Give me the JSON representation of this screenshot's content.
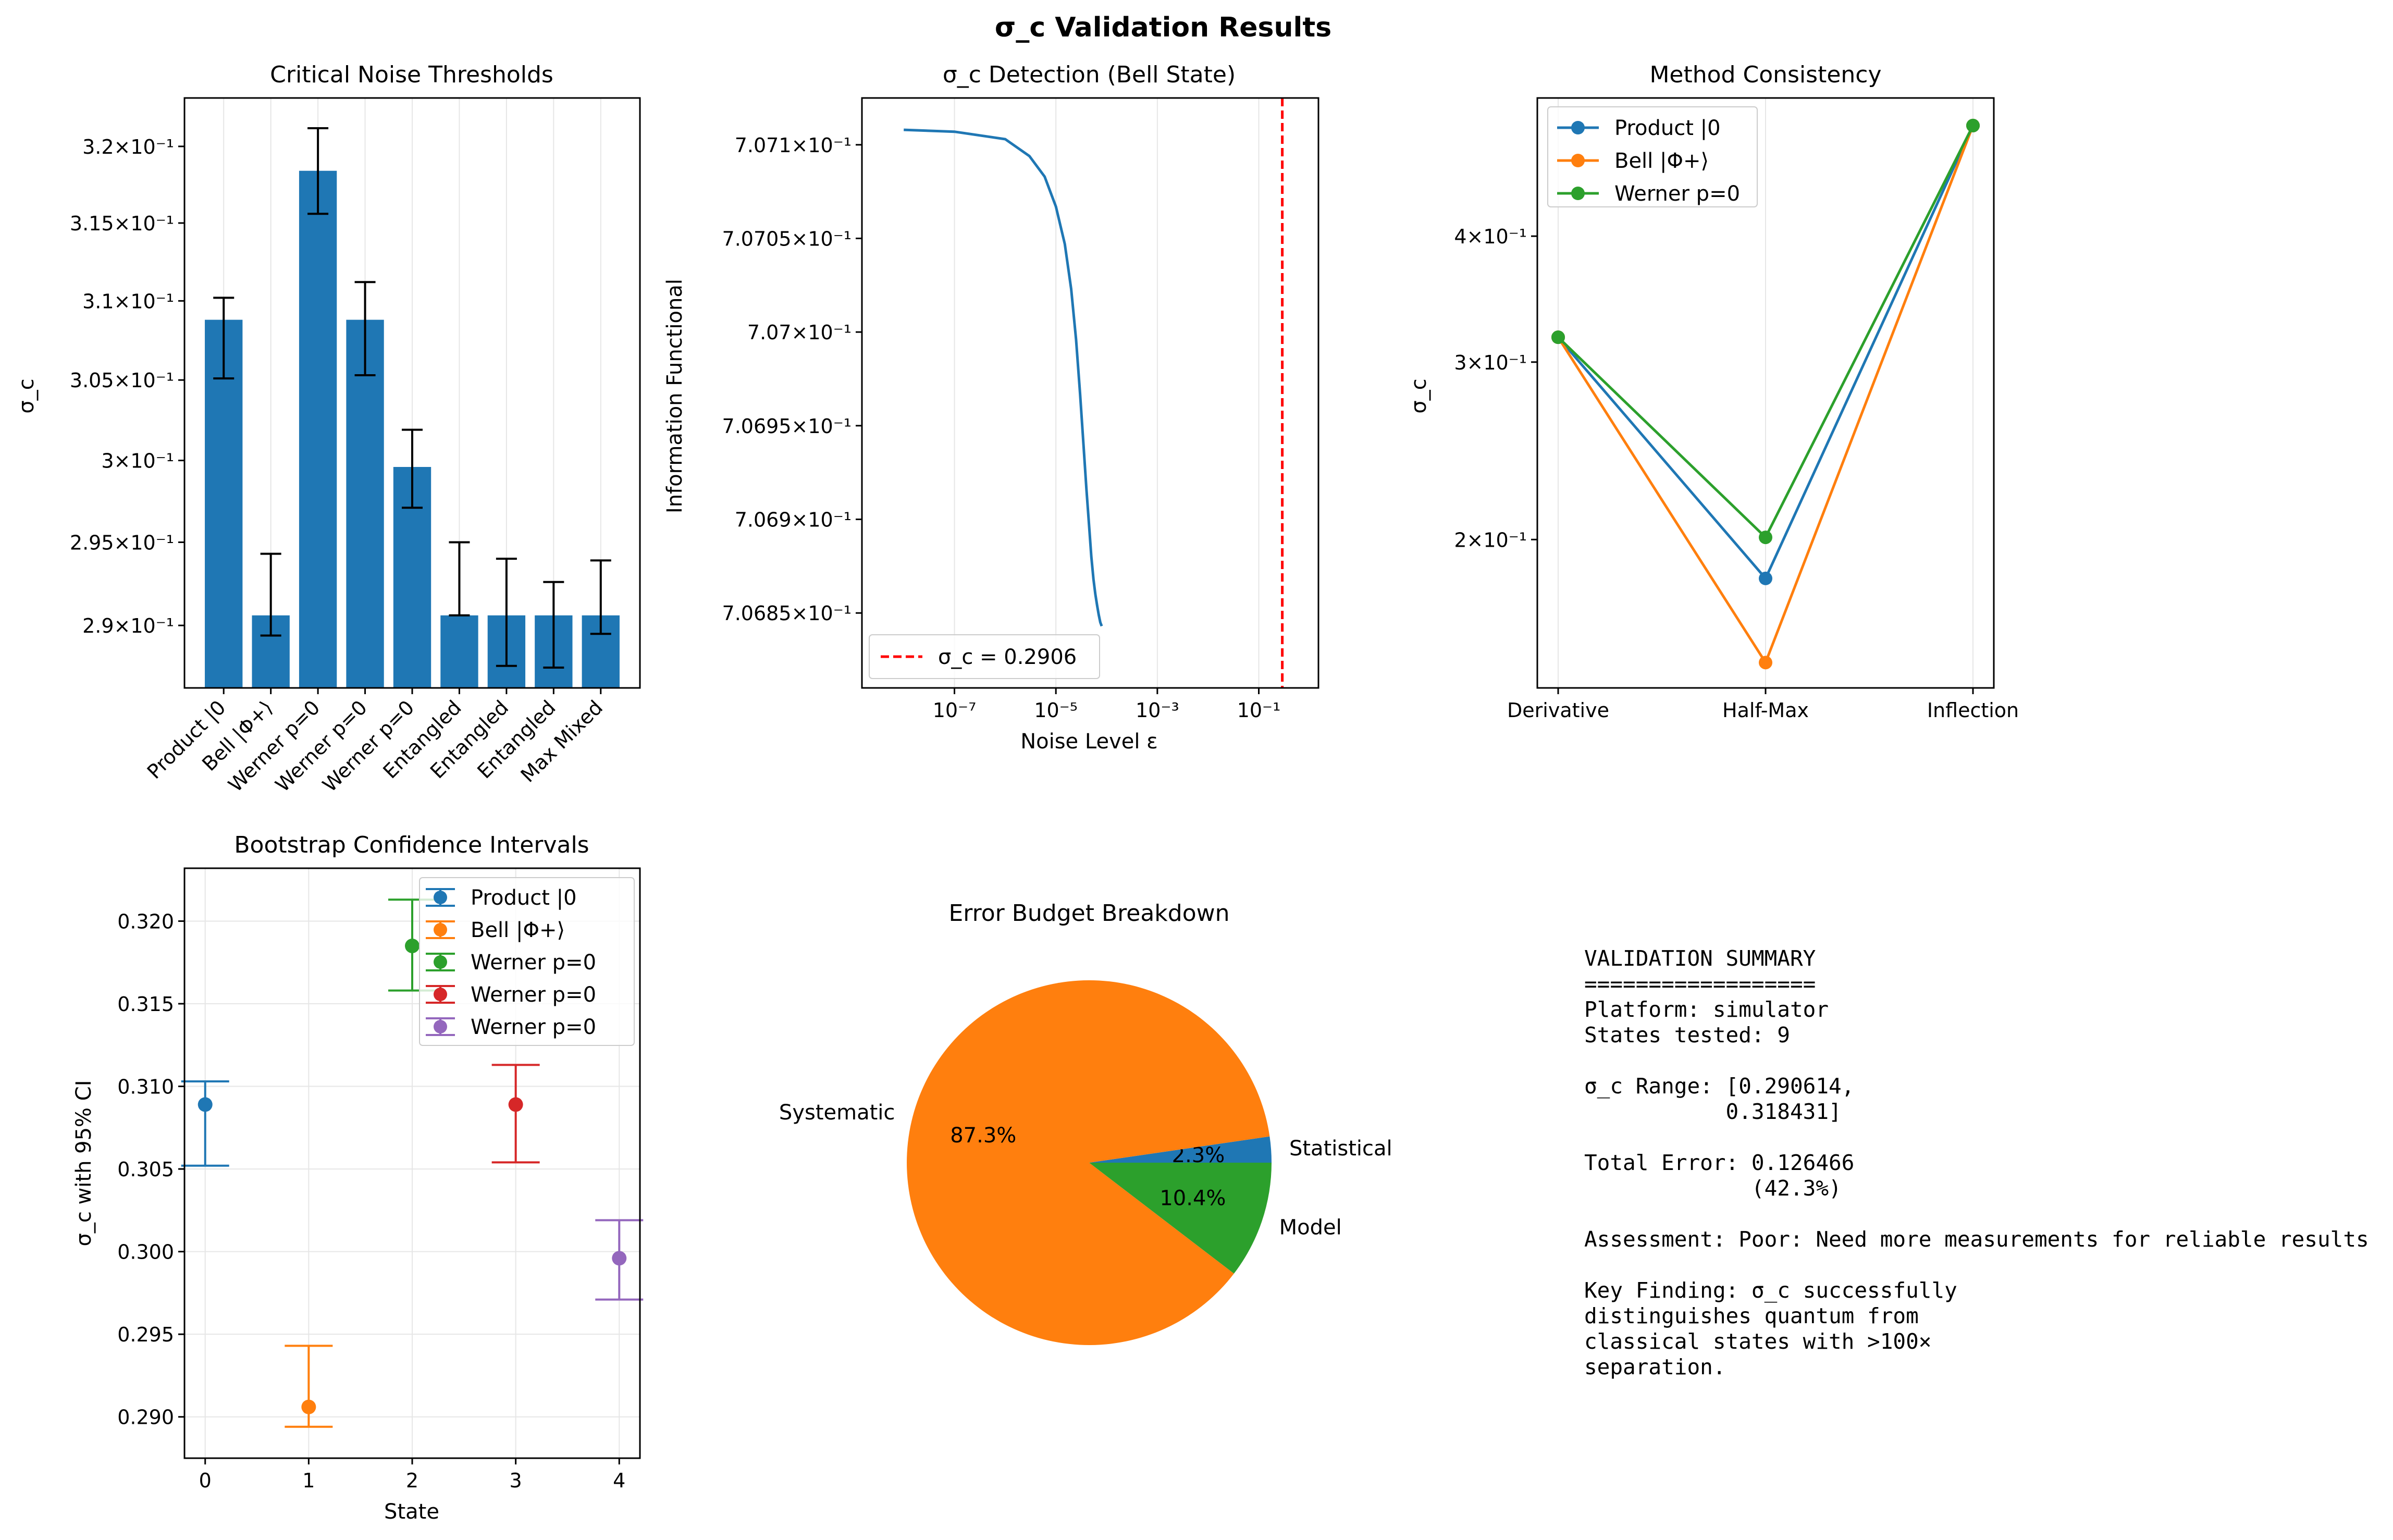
{
  "figure": {
    "suptitle": "σ_c Validation Results"
  },
  "colors": {
    "bar": "#1f77b4",
    "series": [
      "#1f77b4",
      "#ff7f0e",
      "#2ca02c",
      "#d62728",
      "#9467bd"
    ],
    "threshold_line": "#ff0000"
  },
  "chart_data": [
    {
      "id": "thresholds",
      "type": "bar",
      "title": "Critical Noise Thresholds",
      "xlabel": "",
      "ylabel": "σ_c",
      "yscale": "log",
      "ylim": [
        0.2863,
        0.3232
      ],
      "yticks": [
        0.29,
        0.295,
        0.3,
        0.305,
        0.31,
        0.315,
        0.32
      ],
      "ytick_labels": [
        "2.9×10⁻¹",
        "2.95×10⁻¹",
        "3×10⁻¹",
        "3.05×10⁻¹",
        "3.1×10⁻¹",
        "3.15×10⁻¹",
        "3.2×10⁻¹"
      ],
      "categories": [
        "Product |0",
        "Bell |Φ+⟩",
        "Werner p=0",
        "Werner p=0",
        "Werner p=0",
        "Entangled",
        "Entangled",
        "Entangled",
        "Max Mixed"
      ],
      "values": [
        0.3088,
        0.2906,
        0.3184,
        0.3088,
        0.2996,
        0.2906,
        0.2906,
        0.2906,
        0.2906
      ],
      "err_low": [
        0.3051,
        0.2894,
        0.3156,
        0.3053,
        0.2971,
        0.2906,
        0.2876,
        0.2875,
        0.2895
      ],
      "err_high": [
        0.3102,
        0.2943,
        0.3212,
        0.3112,
        0.3019,
        0.295,
        0.294,
        0.2926,
        0.2939
      ],
      "grid": "x"
    },
    {
      "id": "detection",
      "type": "line",
      "title": "σ_c Detection (Bell State)",
      "xlabel": "Noise Level ε",
      "ylabel": "Information Functional",
      "xscale": "log",
      "yscale": "log",
      "xlim": [
        1.5e-09,
        1.5
      ],
      "ylim": [
        0.70681,
        0.707125
      ],
      "xticks": [
        1e-07,
        1e-05,
        0.001,
        0.1
      ],
      "xtick_labels": [
        "10⁻⁷",
        "10⁻⁵",
        "10⁻³",
        "10⁻¹"
      ],
      "yticks": [
        0.70685,
        0.7069,
        0.70695,
        0.707,
        0.70705,
        0.7071
      ],
      "ytick_labels": [
        "7.0685×10⁻¹",
        "7.069×10⁻¹",
        "7.0695×10⁻¹",
        "7.07×10⁻¹",
        "7.0705×10⁻¹",
        "7.071×10⁻¹"
      ],
      "x": [
        1e-08,
        1e-07,
        1e-06,
        3e-06,
        6e-06,
        1e-05,
        1.5e-05,
        2e-05,
        2.5e-05,
        3e-05,
        3.5e-05,
        4e-05,
        4.5e-05,
        5e-05,
        5.5e-05,
        6e-05,
        6.5e-05,
        7e-05,
        7.5e-05,
        8e-05
      ],
      "y": [
        0.707108,
        0.707107,
        0.707103,
        0.707094,
        0.707083,
        0.707067,
        0.707047,
        0.707023,
        0.706996,
        0.706967,
        0.70694,
        0.706916,
        0.706897,
        0.70688,
        0.706868,
        0.70686,
        0.706854,
        0.706849,
        0.706845,
        0.706843
      ],
      "threshold": 0.2906,
      "legend": [
        "σ_c = 0.2906"
      ],
      "legend_loc": "lower-left",
      "grid": "x"
    },
    {
      "id": "consistency",
      "type": "line",
      "title": "Method Consistency",
      "xlabel": "",
      "ylabel": "σ_c",
      "yscale": "log",
      "ylim": [
        0.1425,
        0.5485
      ],
      "yticks": [
        0.2,
        0.3,
        0.4
      ],
      "ytick_labels": [
        "2×10⁻¹",
        "3×10⁻¹",
        "4×10⁻¹"
      ],
      "categories": [
        "Derivative",
        "Half-Max",
        "Inflection"
      ],
      "series": [
        {
          "name": "Product |0",
          "values": [
            0.3175,
            0.183,
            0.515
          ]
        },
        {
          "name": "Bell |Φ+⟩",
          "values": [
            0.3175,
            0.151,
            0.515
          ]
        },
        {
          "name": "Werner p=0",
          "values": [
            0.3175,
            0.201,
            0.515
          ]
        }
      ],
      "legend_loc": "upper-left",
      "grid": "x"
    },
    {
      "id": "bootstrap",
      "type": "scatter",
      "title": "Bootstrap Confidence Intervals",
      "xlabel": "State",
      "ylabel": "σ_c with 95% CI",
      "xlim": [
        -0.2,
        4.2
      ],
      "ylim": [
        0.2875,
        0.3232
      ],
      "xticks": [
        0,
        1,
        2,
        3,
        4
      ],
      "yticks": [
        0.29,
        0.295,
        0.3,
        0.305,
        0.31,
        0.315,
        0.32
      ],
      "ytick_labels": [
        "0.290",
        "0.295",
        "0.300",
        "0.305",
        "0.310",
        "0.315",
        "0.320"
      ],
      "series": [
        {
          "name": "Product |0",
          "x": 0,
          "y": 0.3089,
          "low": 0.3052,
          "high": 0.3103
        },
        {
          "name": "Bell |Φ+⟩",
          "x": 1,
          "y": 0.2906,
          "low": 0.2894,
          "high": 0.2943
        },
        {
          "name": "Werner p=0",
          "x": 2,
          "y": 0.3185,
          "low": 0.3158,
          "high": 0.3213
        },
        {
          "name": "Werner p=0",
          "x": 3,
          "y": 0.3089,
          "low": 0.3054,
          "high": 0.3113
        },
        {
          "name": "Werner p=0",
          "x": 4,
          "y": 0.2996,
          "low": 0.2971,
          "high": 0.3019
        }
      ],
      "legend_loc": "upper-right",
      "grid": "both"
    },
    {
      "id": "error_budget",
      "type": "pie",
      "title": "Error Budget Breakdown",
      "labels": [
        "Statistical",
        "Systematic",
        "Model"
      ],
      "values": [
        2.3,
        87.3,
        10.4
      ],
      "value_labels": [
        "2.3%",
        "87.3%",
        "10.4%"
      ]
    }
  ],
  "summary": {
    "text": "VALIDATION SUMMARY\n==================\nPlatform: simulator\nStates tested: 9\n\nσ_c Range: [0.290614,\n           0.318431]\n\nTotal Error: 0.126466\n             (42.3%)\n\nAssessment: Poor: Need more measurements for reliable results\n\nKey Finding: σ_c successfully\ndistinguishes quantum from\nclassical states with >100×\nseparation."
  }
}
